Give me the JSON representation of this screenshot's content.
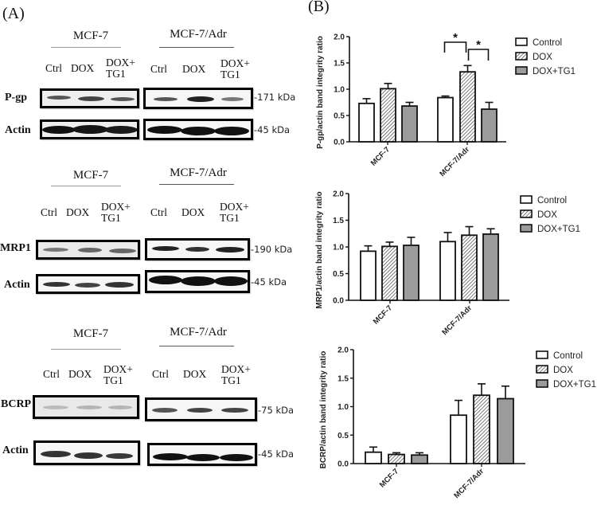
{
  "panels": {
    "A": {
      "label": "(A)",
      "sections": [
        {
          "name": "pgp",
          "groups": [
            "MCF-7",
            "MCF-7/Adr"
          ],
          "lanes": [
            {
              "l1": "Ctrl",
              "l2": ""
            },
            {
              "l1": "DOX",
              "l2": ""
            },
            {
              "l1": "DOX+",
              "l2": "TG1"
            },
            {
              "l1": "Ctrl",
              "l2": ""
            },
            {
              "l1": "DOX",
              "l2": ""
            },
            {
              "l1": "DOX+",
              "l2": "TG1"
            }
          ],
          "rows": [
            {
              "label": "P-gp",
              "kda": "-171 kDa"
            },
            {
              "label": "Actin",
              "kda": "-45 kDa"
            }
          ]
        },
        {
          "name": "mrp1",
          "groups": [
            "MCF-7",
            "MCF-7/Adr"
          ],
          "lanes": [
            {
              "l1": "Ctrl",
              "l2": ""
            },
            {
              "l1": "DOX",
              "l2": ""
            },
            {
              "l1": "DOX+",
              "l2": "TG1"
            },
            {
              "l1": "Ctrl",
              "l2": ""
            },
            {
              "l1": "DOX",
              "l2": ""
            },
            {
              "l1": "DOX+",
              "l2": "TG1"
            }
          ],
          "rows": [
            {
              "label": "MRP1",
              "kda": "-190 kDa"
            },
            {
              "label": "Actin",
              "kda": "-45 kDa"
            }
          ]
        },
        {
          "name": "bcrp",
          "groups": [
            "MCF-7",
            "MCF-7/Adr"
          ],
          "lanes": [
            {
              "l1": "Ctrl",
              "l2": ""
            },
            {
              "l1": "DOX",
              "l2": ""
            },
            {
              "l1": "DOX+",
              "l2": "TG1"
            },
            {
              "l1": "Ctrl",
              "l2": ""
            },
            {
              "l1": "DOX",
              "l2": ""
            },
            {
              "l1": "DOX+",
              "l2": "TG1"
            }
          ],
          "rows": [
            {
              "label": "BCRP",
              "kda": "-75 kDa"
            },
            {
              "label": "Actin",
              "kda": "-45 kDa"
            }
          ]
        }
      ]
    },
    "B": {
      "label": "(B)"
    }
  },
  "legend": {
    "items": [
      {
        "label": "Control",
        "fill": "white"
      },
      {
        "label": "DOX",
        "fill": "hatch"
      },
      {
        "label": "DOX+TG1",
        "fill": "#9b9b9b"
      }
    ]
  },
  "chart_data": [
    {
      "type": "bar",
      "title": "",
      "xlabel": "",
      "ylabel": "P-gp/actin band integrity ratio",
      "ylim": [
        0,
        2.0
      ],
      "yticks": [
        "0.0",
        "0.5",
        "1.0",
        "1.5",
        "2.0"
      ],
      "categories": [
        "MCF-7",
        "MCF-7/Adr"
      ],
      "series": [
        {
          "name": "Control",
          "values": [
            0.73,
            0.84
          ],
          "errors": [
            0.09,
            0.03
          ]
        },
        {
          "name": "DOX",
          "values": [
            1.01,
            1.33
          ],
          "errors": [
            0.1,
            0.12
          ]
        },
        {
          "name": "DOX+TG1",
          "values": [
            0.68,
            0.62
          ],
          "errors": [
            0.07,
            0.13
          ]
        }
      ],
      "annotations": [
        {
          "text": "*",
          "between": [
            "MCF-7/Adr Control",
            "MCF-7/Adr DOX"
          ]
        },
        {
          "text": "*",
          "between": [
            "MCF-7/Adr DOX",
            "MCF-7/Adr DOX+TG1"
          ]
        }
      ],
      "grid": false,
      "legend_position": "right"
    },
    {
      "type": "bar",
      "title": "",
      "xlabel": "",
      "ylabel": "MRP1/actin band integrity ratio",
      "ylim": [
        0,
        2.0
      ],
      "yticks": [
        "0.0",
        "0.5",
        "1.0",
        "1.5",
        "2.0"
      ],
      "categories": [
        "MCF-7",
        "MCF-7/Adr"
      ],
      "series": [
        {
          "name": "Control",
          "values": [
            0.92,
            1.1
          ],
          "errors": [
            0.1,
            0.17
          ]
        },
        {
          "name": "DOX",
          "values": [
            1.01,
            1.22
          ],
          "errors": [
            0.08,
            0.16
          ]
        },
        {
          "name": "DOX+TG1",
          "values": [
            1.03,
            1.24
          ],
          "errors": [
            0.15,
            0.1
          ]
        }
      ],
      "grid": false,
      "legend_position": "right"
    },
    {
      "type": "bar",
      "title": "",
      "xlabel": "",
      "ylabel": "BCRP/actin band integrity ratio",
      "ylim": [
        0,
        2.0
      ],
      "yticks": [
        "0.0",
        "0.5",
        "1.0",
        "1.5",
        "2.0"
      ],
      "categories": [
        "MCF-7",
        "MCF-7/Adr"
      ],
      "series": [
        {
          "name": "Control",
          "values": [
            0.2,
            0.85
          ],
          "errors": [
            0.09,
            0.26
          ]
        },
        {
          "name": "DOX",
          "values": [
            0.16,
            1.2
          ],
          "errors": [
            0.03,
            0.2
          ]
        },
        {
          "name": "DOX+TG1",
          "values": [
            0.15,
            1.14
          ],
          "errors": [
            0.04,
            0.22
          ]
        }
      ],
      "grid": false,
      "legend_position": "right"
    }
  ]
}
